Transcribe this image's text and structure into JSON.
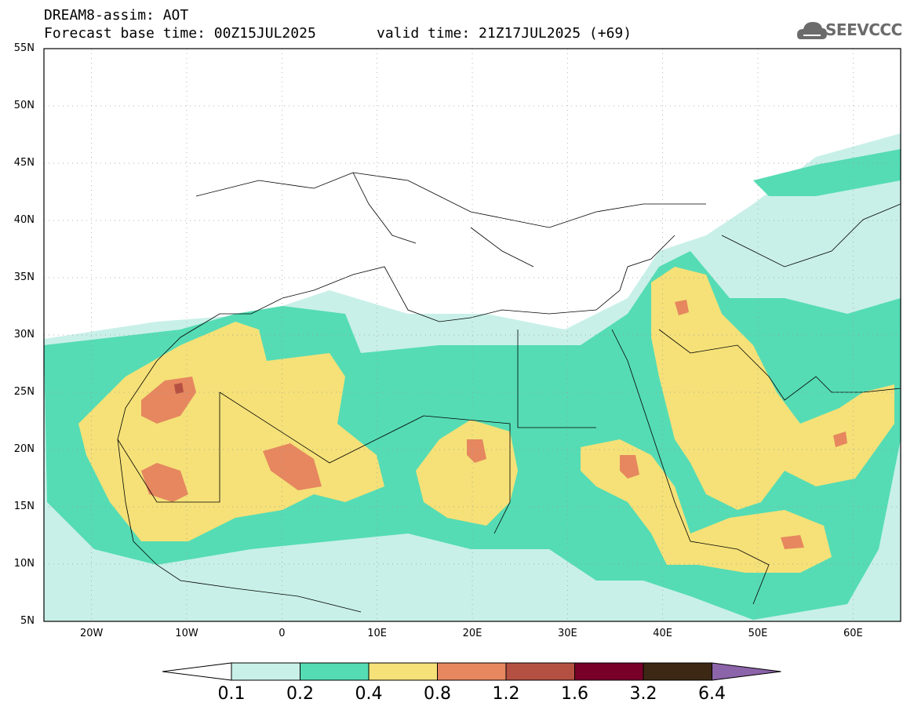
{
  "header": {
    "title": "DREAM8-assim: AOT",
    "forecast_line": "Forecast base time: 00Z15JUL2025",
    "valid_line": "valid time: 21Z17JUL2025 (+69)"
  },
  "logo": {
    "text": "SEEVCCC",
    "icon": "cloud-icon"
  },
  "axes": {
    "lat_labels": [
      "55N",
      "50N",
      "45N",
      "40N",
      "35N",
      "30N",
      "25N",
      "20N",
      "15N",
      "10N",
      "5N"
    ],
    "lon_labels": [
      "20W",
      "10W",
      "0",
      "10E",
      "20E",
      "30E",
      "40E",
      "50E",
      "60E"
    ],
    "lat_range": [
      5,
      55
    ],
    "lon_range": [
      -25,
      65
    ],
    "grid": "dotted"
  },
  "legend": {
    "labels": [
      "0.1",
      "0.2",
      "0.4",
      "0.8",
      "1.2",
      "1.6",
      "3.2",
      "6.4"
    ],
    "colors": [
      "#ffffff",
      "#c8f0e8",
      "#55dcb4",
      "#f5e178",
      "#e6875f",
      "#b45041",
      "#780028",
      "#3c2814",
      "#8c64aa"
    ]
  }
}
